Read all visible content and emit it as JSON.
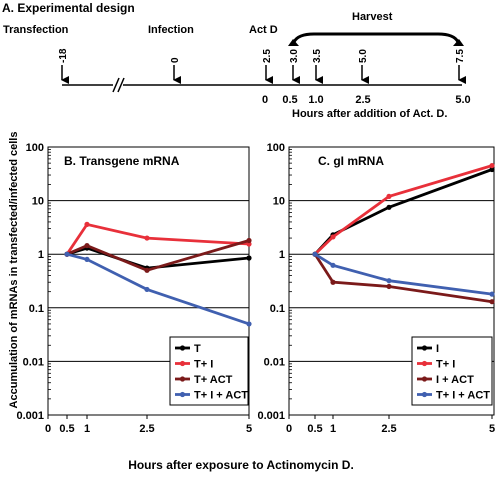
{
  "design": {
    "title": "A. Experimental design",
    "labels": {
      "transfection": "Transfection",
      "infection": "Infection",
      "actd": "Act D",
      "harvest": "Harvest",
      "hours_caption": "Hours after addition of Act. D."
    },
    "timeline_ticks": [
      "-18",
      "0",
      "2.5",
      "3.0",
      "3.5",
      "5.0",
      "7.5"
    ],
    "hours_ticks": [
      "0",
      "0.5",
      "1.0",
      "2.5",
      "5.0"
    ]
  },
  "shared": {
    "ylabel": "Accumulation of mRNAs in transfected/infected cells",
    "xlabel": "Hours after exposure to Actinomycin D.",
    "ytick_labels": [
      "100",
      "10",
      "1",
      "0.1",
      "0.01",
      "0.001"
    ],
    "xtick_labels_B": [
      "0",
      "0.5",
      "1",
      "2.5",
      "5"
    ],
    "xtick_labels_C": [
      "0",
      "0.5",
      "1",
      "2.5",
      "5"
    ]
  },
  "chart_data": [
    {
      "type": "line",
      "title": "B. Transgene mRNA",
      "xlabel": "Hours after exposure to Actinomycin D.",
      "ylabel": "Accumulation of mRNAs in transfected/infected cells",
      "yscale": "log",
      "ylim": [
        0.001,
        100
      ],
      "xlim": [
        0,
        5
      ],
      "grid": "horizontal major",
      "legend": "bottom-right",
      "series": [
        {
          "name": "T",
          "color": "#000000",
          "x": [
            0.5,
            1,
            2.5,
            5
          ],
          "y": [
            1,
            1.3,
            0.55,
            0.85
          ]
        },
        {
          "name": "T+ I",
          "color": "#e8303a",
          "x": [
            0.5,
            1,
            2.5,
            5
          ],
          "y": [
            1,
            3.6,
            2.0,
            1.55
          ]
        },
        {
          "name": "T+ ACT",
          "color": "#7b1a1a",
          "x": [
            0.5,
            1,
            2.5,
            5
          ],
          "y": [
            1,
            1.45,
            0.5,
            1.8
          ]
        },
        {
          "name": "T+ I + ACT",
          "color": "#4060b0",
          "x": [
            0.5,
            1,
            2.5,
            5
          ],
          "y": [
            1,
            0.8,
            0.22,
            0.05
          ]
        }
      ]
    },
    {
      "type": "line",
      "title": "C. gI mRNA",
      "xlabel": "Hours after exposure to Actinomycin D.",
      "ylabel": "",
      "yscale": "log",
      "ylim": [
        0.001,
        100
      ],
      "xlim": [
        0,
        5
      ],
      "grid": "horizontal major",
      "legend": "bottom-right",
      "series": [
        {
          "name": "I",
          "color": "#000000",
          "x": [
            0.5,
            1,
            2.5,
            5
          ],
          "y": [
            1,
            2.3,
            7.5,
            38
          ]
        },
        {
          "name": "T+ I",
          "color": "#e8303a",
          "x": [
            0.5,
            1,
            2.5,
            5
          ],
          "y": [
            1,
            2.1,
            12,
            45
          ]
        },
        {
          "name": "I + ACT",
          "color": "#7b1a1a",
          "x": [
            0.5,
            1,
            2.5,
            5
          ],
          "y": [
            1,
            0.3,
            0.25,
            0.13
          ]
        },
        {
          "name": "T+ I + ACT",
          "color": "#4060b0",
          "x": [
            0.5,
            1,
            2.5,
            5
          ],
          "y": [
            1,
            0.62,
            0.32,
            0.18
          ]
        }
      ]
    }
  ]
}
